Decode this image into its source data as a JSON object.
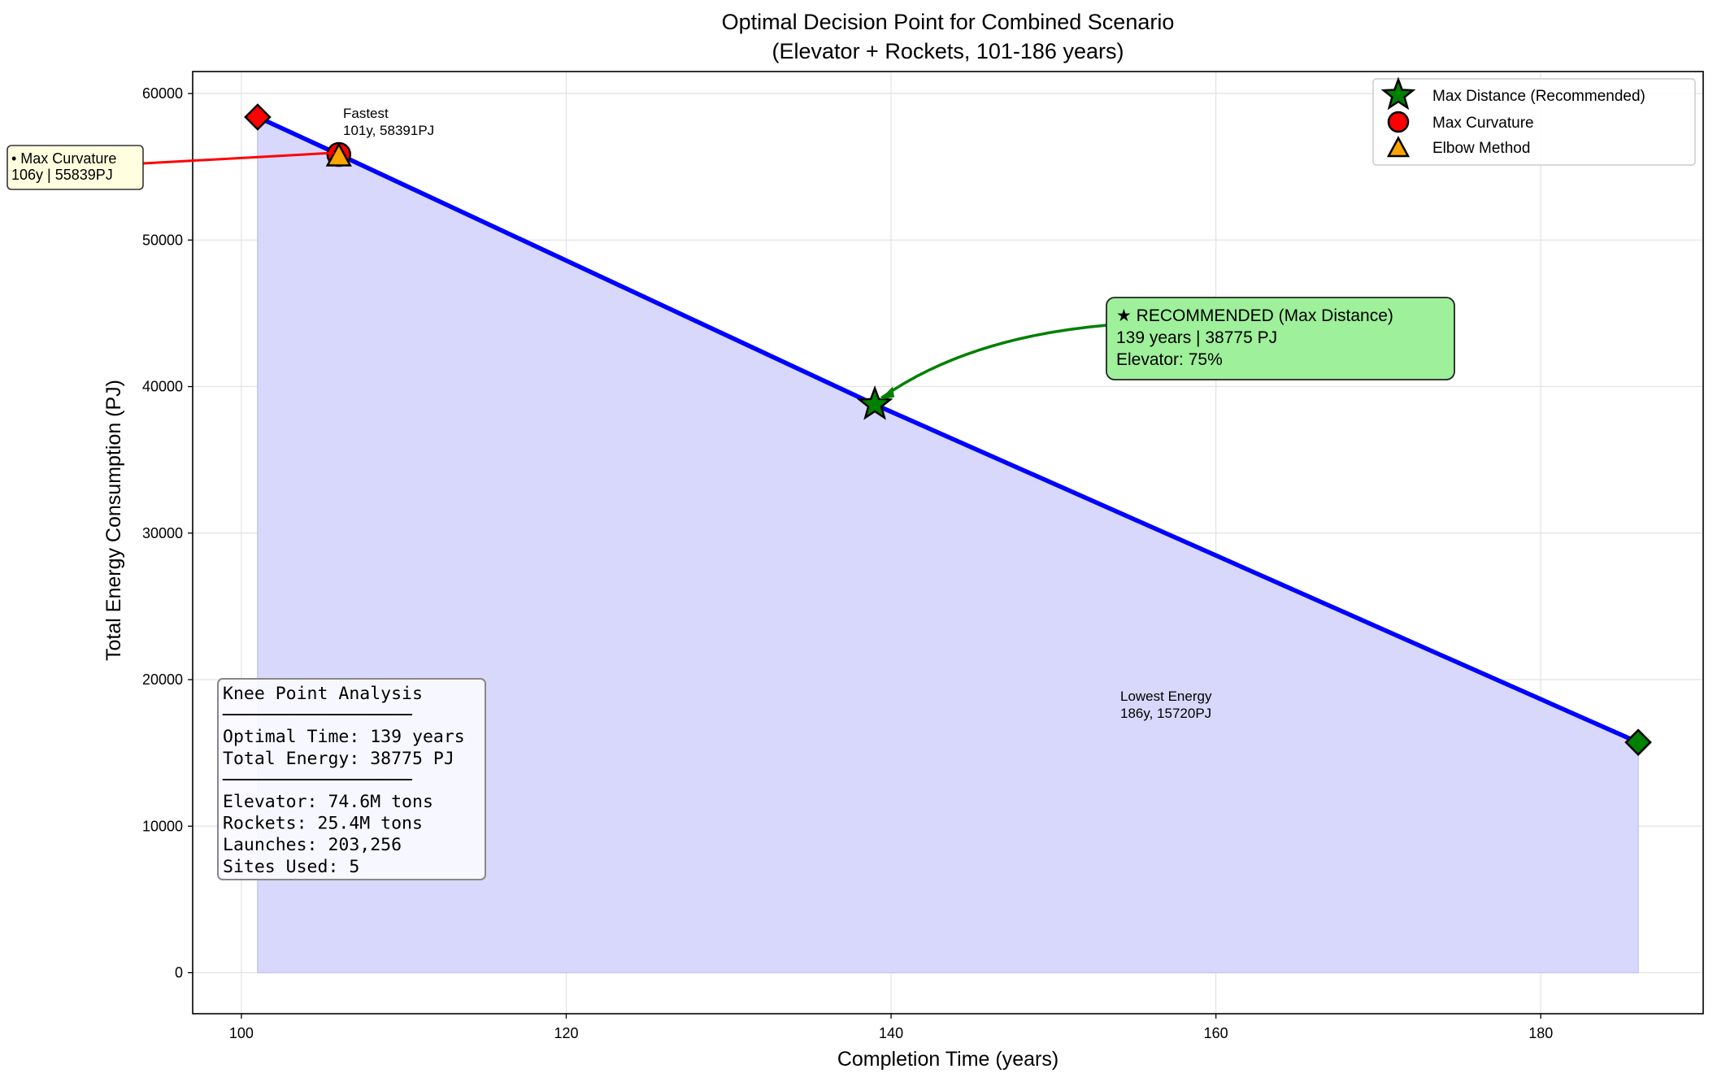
{
  "chart_data": {
    "type": "line",
    "title": [
      "Optimal Decision Point for Combined Scenario",
      "(Elevator + Rockets, 101-186 years)"
    ],
    "xlabel": "Completion Time (years)",
    "ylabel": "Total Energy Consumption (PJ)",
    "xlim": [
      97,
      190
    ],
    "ylim": [
      -2800,
      61500
    ],
    "xticks": [
      100,
      120,
      140,
      160,
      180
    ],
    "yticks": [
      0,
      10000,
      20000,
      30000,
      40000,
      50000,
      60000
    ],
    "grid": true,
    "legend_position": "top-right",
    "series": [
      {
        "x": [
          101,
          106,
          139,
          186
        ],
        "y": [
          58391,
          55839,
          38775,
          15720
        ],
        "color": "#0000ff",
        "fill": "#d8d8fc"
      }
    ],
    "markers": [
      {
        "label": "Max Distance (Recommended)",
        "shape": "star",
        "x": 139,
        "y": 38775,
        "color": "#008000"
      },
      {
        "label": "Max Curvature",
        "shape": "circle",
        "x": 106,
        "y": 55839,
        "color": "#ff0000"
      },
      {
        "label": "Elbow Method",
        "shape": "triangle",
        "x": 106,
        "y": 55839,
        "color": "#ffa500"
      }
    ],
    "endpoints": [
      {
        "shape": "diamond",
        "x": 101,
        "y": 58391,
        "color": "#ff0000",
        "label": [
          "Fastest",
          "101y, 58391PJ"
        ]
      },
      {
        "shape": "diamond",
        "x": 186,
        "y": 15720,
        "color": "#008000",
        "label": [
          "Lowest Energy",
          "186y, 15720PJ"
        ]
      }
    ],
    "annotations": {
      "recommended": {
        "lines": [
          "★ RECOMMENDED (Max Distance)",
          "139 years | 38775 PJ",
          "Elevator: 75%"
        ],
        "bg": "#9ef09a",
        "arrow_color": "#008000"
      },
      "curvature": {
        "lines": [
          "• Max Curvature",
          "106y | 55839PJ"
        ],
        "bg": "#ffffe0",
        "arrow_color": "#ff0000"
      }
    },
    "info_box": {
      "lines": [
        "Knee Point Analysis",
        "──────────────────",
        "Optimal Time: 139 years",
        "Total Energy: 38775 PJ",
        "──────────────────",
        "Elevator: 74.6M tons",
        "Rockets: 25.4M tons",
        "Launches: 203,256",
        "Sites Used: 5"
      ]
    }
  }
}
